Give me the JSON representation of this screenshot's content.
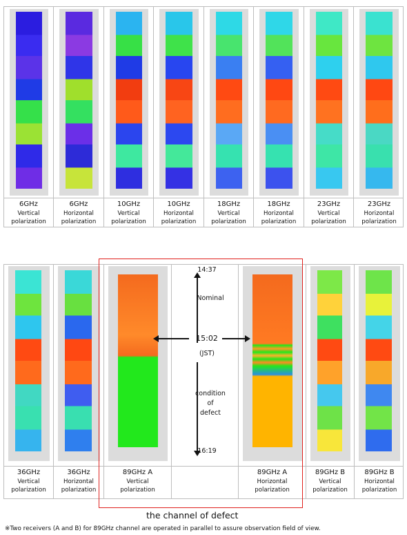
{
  "top_row": [
    {
      "freq": "6GHz",
      "pol1": "Vertical",
      "pol2": "polarization",
      "palette": "six_v"
    },
    {
      "freq": "6GHz",
      "pol1": "Horizontal",
      "pol2": "polarization",
      "palette": "six_h"
    },
    {
      "freq": "10GHz",
      "pol1": "Vertical",
      "pol2": "polarization",
      "palette": "ten_v"
    },
    {
      "freq": "10GHz",
      "pol1": "Horizontal",
      "pol2": "polarization",
      "palette": "ten_h"
    },
    {
      "freq": "18GHz",
      "pol1": "Vertical",
      "pol2": "polarization",
      "palette": "eighteen_v"
    },
    {
      "freq": "18GHz",
      "pol1": "Horizontal",
      "pol2": "polarization",
      "palette": "eighteen_h"
    },
    {
      "freq": "23GHz",
      "pol1": "Vertical",
      "pol2": "polarization",
      "palette": "twentythree_v"
    },
    {
      "freq": "23GHz",
      "pol1": "Horizontal",
      "pol2": "polarization",
      "palette": "twentythree_h"
    }
  ],
  "bottom_row": [
    {
      "freq": "36GHz",
      "pol1": "Vertical",
      "pol2": "polarization"
    },
    {
      "freq": "36GHz",
      "pol1": "Horizontal",
      "pol2": "polarization"
    },
    {
      "freq": "89GHz  A",
      "pol1": "Vertical",
      "pol2": "polarization"
    },
    {
      "freq": "",
      "pol1": "",
      "pol2": ""
    },
    {
      "freq": "89GHz  A",
      "pol1": "Horizontal",
      "pol2": "polarization"
    },
    {
      "freq": "89GHz  B",
      "pol1": "Vertical",
      "pol2": "polarization"
    },
    {
      "freq": "89GHz  B",
      "pol1": "Horizontal",
      "pol2": "polarization"
    }
  ],
  "timeline": {
    "start": "14:37",
    "nominal": "Nominal",
    "event_time": "15:02",
    "tz": "(JST)",
    "defect_1": "condition",
    "defect_2": "of",
    "defect_3": "defect",
    "end": "16:19"
  },
  "defect_label": "the channel of defect",
  "footnote": "※Two receivers (A and B) for 89GHz channel  are operated in parallel to assure observation field of view.",
  "colors": {
    "defect_box": "#e0201c",
    "nominal_orange": "#f46a1e",
    "defect_green": "#22e81c",
    "defect_amber": "#ffb400"
  }
}
